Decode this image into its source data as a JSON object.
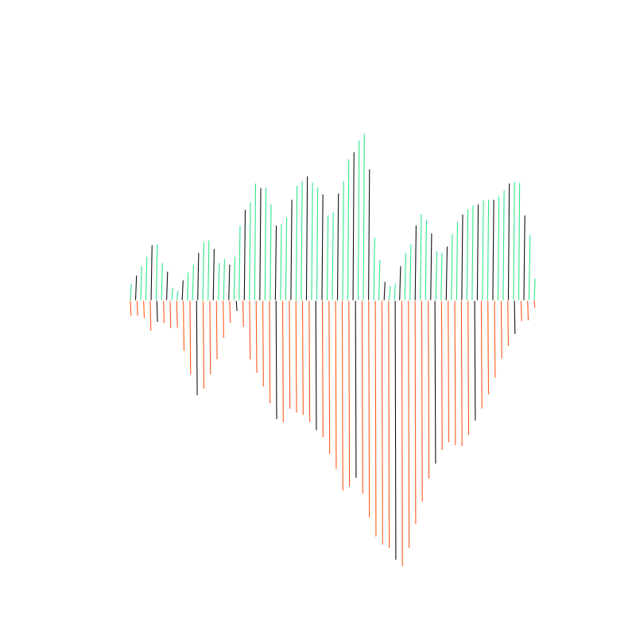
{
  "chart_data": {
    "type": "bar",
    "title": "",
    "xlabel": "",
    "ylabel": "",
    "grid": false,
    "legend": "none",
    "x_count": 91,
    "ylim": [
      -3.34,
      2.14
    ],
    "colors": {
      "positive": "#2ee88a",
      "negative": "#ff5a1f",
      "positive_alt": "#111111",
      "negative_alt": "#111111"
    },
    "series": [
      {
        "values": [
          0.21,
          0.32,
          0.44,
          0.56,
          0.71,
          0.72,
          0.48,
          0.37,
          0.16,
          0.12,
          0.26,
          0.36,
          0.46,
          0.61,
          0.75,
          0.77,
          0.66,
          0.48,
          0.53,
          0.46,
          0.56,
          0.96,
          1.16,
          1.26,
          1.5,
          1.44,
          1.45,
          1.23,
          0.96,
          0.98,
          1.06,
          1.29,
          1.47,
          1.53,
          1.59,
          1.51,
          1.45,
          1.36,
          1.09,
          1.13,
          1.37,
          1.53,
          1.81,
          1.9,
          2.05,
          2.14,
          1.68,
          0.81,
          0.52,
          0.24,
          0.19,
          0.22,
          0.44,
          0.61,
          0.72,
          0.96,
          1.11,
          1.03,
          0.86,
          0.63,
          0.61,
          0.69,
          0.85,
          1.01,
          1.1,
          1.17,
          1.22,
          1.23,
          1.28,
          1.29,
          1.29,
          1.33,
          1.41,
          1.5,
          1.52,
          1.51,
          1.09,
          0.84,
          0.28
        ],
        "signs": "positive"
      },
      {
        "values": [
          -0.19,
          -0.19,
          -0.22,
          -0.38,
          -0.27,
          -0.28,
          -0.35,
          -0.34,
          -0.63,
          -0.93,
          -1.19,
          -1.11,
          -0.93,
          -0.74,
          -0.47,
          -0.28,
          -0.13,
          -0.33,
          -0.74,
          -0.91,
          -1.08,
          -1.29,
          -1.49,
          -1.53,
          -1.36,
          -1.41,
          -1.44,
          -1.53,
          -1.63,
          -1.72,
          -1.93,
          -2.12,
          -2.39,
          -2.34,
          -2.23,
          -2.43,
          -2.73,
          -2.97,
          -3.07,
          -3.11,
          -3.26,
          -3.34,
          -3.11,
          -2.81,
          -2.53,
          -2.24,
          -2.05,
          -1.88,
          -1.78,
          -1.82,
          -1.83,
          -1.69,
          -1.51,
          -1.36,
          -1.18,
          -0.97,
          -0.73,
          -0.57,
          -0.42,
          -0.26,
          -0.25,
          -0.09
        ],
        "signs": "negative"
      }
    ]
  }
}
